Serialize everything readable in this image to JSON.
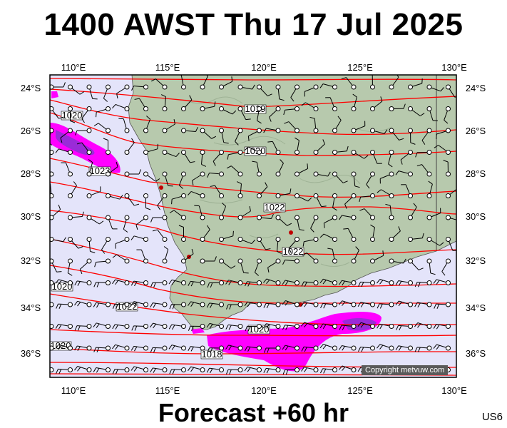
{
  "title": "1400 AWST Thu 17 Jul 2025",
  "forecast_label": "Forecast +60 hr",
  "region_code": "US6",
  "copyright": "Copyright metvuw.com",
  "lon_labels": [
    "110°E",
    "115°E",
    "120°E",
    "125°E",
    "130°E"
  ],
  "lat_labels": [
    "24°S",
    "26°S",
    "28°S",
    "30°S",
    "32°S",
    "34°S",
    "36°S"
  ],
  "isobar_labels": [
    "1019",
    "1020",
    "1023",
    "1020",
    "1022",
    "1022",
    "1020",
    "1022",
    "1020",
    "1020",
    "1018"
  ],
  "colors": {
    "sea": "#e4e4fa",
    "land": "#b7c9ad",
    "isobar": "#ff0000",
    "precip_light": "#ff00ff",
    "precip_heavy": "#9a2bd8"
  }
}
